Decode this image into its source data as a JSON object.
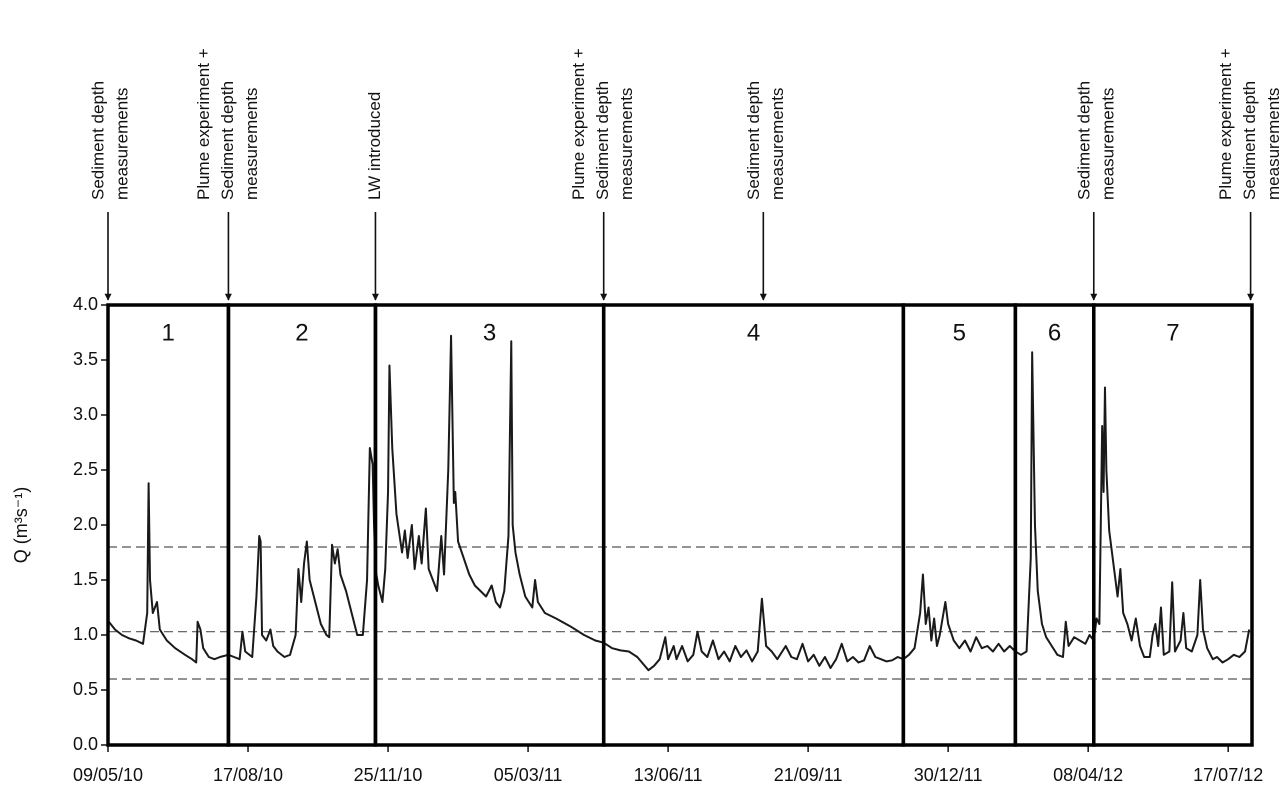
{
  "chart_data": {
    "type": "line",
    "y_label": "Q (m³s⁻¹)",
    "color": "#1a1a1a",
    "xlim": [
      "2010-05-09",
      "2012-08-03"
    ],
    "xticks": [
      {
        "value": "2010-05-09",
        "label": "09/05/10"
      },
      {
        "value": "2010-08-17",
        "label": "17/08/10"
      },
      {
        "value": "2010-11-25",
        "label": "25/11/10"
      },
      {
        "value": "2011-03-05",
        "label": "05/03/11"
      },
      {
        "value": "2011-06-13",
        "label": "13/06/11"
      },
      {
        "value": "2011-09-21",
        "label": "21/09/11"
      },
      {
        "value": "2011-12-30",
        "label": "30/12/11"
      },
      {
        "value": "2012-04-08",
        "label": "08/04/12"
      },
      {
        "value": "2012-07-17",
        "label": "17/07/12"
      }
    ],
    "ylim": [
      0,
      4
    ],
    "yticks": [
      {
        "value": 0,
        "label": "0.0"
      },
      0.5,
      {
        "value": 1,
        "label": "1.0"
      },
      1.5,
      {
        "value": 2,
        "label": "2.0"
      },
      2.5,
      {
        "value": 3,
        "label": "3.0"
      },
      3.5,
      {
        "value": 4,
        "label": "4.0"
      }
    ],
    "reference_lines": [
      1.8,
      1.03,
      0.6
    ],
    "periods": [
      {
        "label": "1",
        "start": "2010-05-09",
        "end": "2010-08-03"
      },
      {
        "label": "2",
        "start": "2010-08-03",
        "end": "2010-11-16"
      },
      {
        "label": "3",
        "start": "2010-11-16",
        "end": "2011-04-28"
      },
      {
        "label": "4",
        "start": "2011-04-28",
        "end": "2011-11-28"
      },
      {
        "label": "5",
        "start": "2011-11-28",
        "end": "2012-02-16"
      },
      {
        "label": "6",
        "start": "2012-02-16",
        "end": "2012-04-12"
      },
      {
        "label": "7",
        "start": "2012-04-12",
        "end": "2012-08-03"
      }
    ],
    "annotations": [
      {
        "x": "2010-05-09",
        "text": [
          "Sediment depth",
          "measurements"
        ]
      },
      {
        "x": "2010-08-03",
        "text": [
          "Plume experiment +",
          "Sediment depth",
          "measurements"
        ]
      },
      {
        "x": "2010-11-16",
        "text": [
          "LW introduced"
        ]
      },
      {
        "x": "2011-04-28",
        "text": [
          "Plume experiment +",
          "Sediment depth",
          "measurements"
        ]
      },
      {
        "x": "2011-08-20",
        "text": [
          "Sediment depth",
          "measurements"
        ]
      },
      {
        "x": "2012-04-12",
        "text": [
          "Sediment depth",
          "measurements"
        ]
      },
      {
        "x": "2012-08-02",
        "text": [
          "Plume experiment +",
          "Sediment depth",
          "measurements"
        ]
      }
    ],
    "x": [
      "2010-05-09",
      "2010-05-14",
      "2010-05-19",
      "2010-05-24",
      "2010-05-29",
      "2010-06-03",
      "2010-06-06",
      "2010-06-07",
      "2010-06-08",
      "2010-06-10",
      "2010-06-13",
      "2010-06-15",
      "2010-06-20",
      "2010-06-26",
      "2010-07-03",
      "2010-07-08",
      "2010-07-11",
      "2010-07-12",
      "2010-07-14",
      "2010-07-16",
      "2010-07-20",
      "2010-07-24",
      "2010-07-28",
      "2010-08-03",
      "2010-08-07",
      "2010-08-11",
      "2010-08-13",
      "2010-08-15",
      "2010-08-20",
      "2010-08-23",
      "2010-08-25",
      "2010-08-26",
      "2010-08-27",
      "2010-08-30",
      "2010-09-02",
      "2010-09-04",
      "2010-09-07",
      "2010-09-12",
      "2010-09-16",
      "2010-09-20",
      "2010-09-22",
      "2010-09-24",
      "2010-09-26",
      "2010-09-28",
      "2010-09-30",
      "2010-10-04",
      "2010-10-08",
      "2010-10-12",
      "2010-10-14",
      "2010-10-16",
      "2010-10-18",
      "2010-10-20",
      "2010-10-22",
      "2010-10-26",
      "2010-10-30",
      "2010-11-03",
      "2010-11-07",
      "2010-11-10",
      "2010-11-12",
      "2010-11-14",
      "2010-11-15",
      "2010-11-16",
      "2010-11-18",
      "2010-11-21",
      "2010-11-23",
      "2010-11-25",
      "2010-11-26",
      "2010-11-28",
      "2010-12-01",
      "2010-12-05",
      "2010-12-07",
      "2010-12-09",
      "2010-12-12",
      "2010-12-14",
      "2010-12-17",
      "2010-12-19",
      "2010-12-22",
      "2010-12-24",
      "2010-12-27",
      "2010-12-30",
      "2011-01-02",
      "2011-01-04",
      "2011-01-07",
      "2011-01-09",
      "2011-01-11",
      "2011-01-12",
      "2011-01-14",
      "2011-01-18",
      "2011-01-22",
      "2011-01-26",
      "2011-01-30",
      "2011-02-03",
      "2011-02-07",
      "2011-02-10",
      "2011-02-13",
      "2011-02-16",
      "2011-02-19",
      "2011-02-21",
      "2011-02-22",
      "2011-02-24",
      "2011-02-27",
      "2011-03-03",
      "2011-03-08",
      "2011-03-10",
      "2011-03-12",
      "2011-03-17",
      "2011-03-25",
      "2011-04-04",
      "2011-04-14",
      "2011-04-22",
      "2011-04-28",
      "2011-05-04",
      "2011-05-10",
      "2011-05-16",
      "2011-05-22",
      "2011-05-26",
      "2011-05-30",
      "2011-06-03",
      "2011-06-07",
      "2011-06-11",
      "2011-06-13",
      "2011-06-17",
      "2011-06-19",
      "2011-06-23",
      "2011-06-27",
      "2011-07-01",
      "2011-07-04",
      "2011-07-07",
      "2011-07-11",
      "2011-07-15",
      "2011-07-19",
      "2011-07-23",
      "2011-07-27",
      "2011-07-31",
      "2011-08-04",
      "2011-08-08",
      "2011-08-12",
      "2011-08-16",
      "2011-08-19",
      "2011-08-22",
      "2011-08-26",
      "2011-08-30",
      "2011-09-05",
      "2011-09-09",
      "2011-09-13",
      "2011-09-17",
      "2011-09-21",
      "2011-09-25",
      "2011-09-29",
      "2011-10-03",
      "2011-10-07",
      "2011-10-11",
      "2011-10-15",
      "2011-10-19",
      "2011-10-23",
      "2011-10-27",
      "2011-10-31",
      "2011-11-04",
      "2011-11-08",
      "2011-11-12",
      "2011-11-16",
      "2011-11-20",
      "2011-11-24",
      "2011-11-28",
      "2011-12-02",
      "2011-12-06",
      "2011-12-10",
      "2011-12-12",
      "2011-12-14",
      "2011-12-16",
      "2011-12-18",
      "2011-12-20",
      "2011-12-22",
      "2011-12-24",
      "2011-12-28",
      "2011-12-30",
      "2012-01-03",
      "2012-01-07",
      "2012-01-11",
      "2012-01-15",
      "2012-01-19",
      "2012-01-23",
      "2012-01-27",
      "2012-01-31",
      "2012-02-04",
      "2012-02-08",
      "2012-02-12",
      "2012-02-16",
      "2012-02-20",
      "2012-02-24",
      "2012-02-27",
      "2012-02-28",
      "2012-03-01",
      "2012-03-03",
      "2012-03-06",
      "2012-03-09",
      "2012-03-13",
      "2012-03-17",
      "2012-03-21",
      "2012-03-23",
      "2012-03-25",
      "2012-03-29",
      "2012-04-02",
      "2012-04-06",
      "2012-04-09",
      "2012-04-12",
      "2012-04-14",
      "2012-04-16",
      "2012-04-18",
      "2012-04-19",
      "2012-04-20",
      "2012-04-21",
      "2012-04-23",
      "2012-04-26",
      "2012-04-29",
      "2012-05-01",
      "2012-05-03",
      "2012-05-06",
      "2012-05-09",
      "2012-05-12",
      "2012-05-15",
      "2012-05-18",
      "2012-05-22",
      "2012-05-24",
      "2012-05-26",
      "2012-05-28",
      "2012-05-30",
      "2012-06-01",
      "2012-06-05",
      "2012-06-07",
      "2012-06-09",
      "2012-06-13",
      "2012-06-15",
      "2012-06-17",
      "2012-06-21",
      "2012-06-25",
      "2012-06-27",
      "2012-06-29",
      "2012-07-02",
      "2012-07-06",
      "2012-07-09",
      "2012-07-13",
      "2012-07-17",
      "2012-07-21",
      "2012-07-25",
      "2012-07-29",
      "2012-08-01"
    ],
    "values": [
      1.13,
      1.05,
      1.0,
      0.97,
      0.95,
      0.92,
      1.2,
      2.38,
      1.5,
      1.2,
      1.3,
      1.05,
      0.95,
      0.88,
      0.82,
      0.78,
      0.75,
      1.12,
      1.05,
      0.88,
      0.8,
      0.78,
      0.8,
      0.82,
      0.8,
      0.78,
      1.03,
      0.85,
      0.8,
      1.35,
      1.9,
      1.85,
      1.0,
      0.95,
      1.05,
      0.9,
      0.85,
      0.8,
      0.82,
      1.0,
      1.6,
      1.3,
      1.65,
      1.85,
      1.5,
      1.3,
      1.1,
      1.0,
      0.98,
      1.82,
      1.65,
      1.78,
      1.55,
      1.4,
      1.2,
      1.0,
      1.0,
      1.5,
      2.7,
      2.55,
      2.0,
      1.6,
      1.45,
      1.3,
      1.6,
      2.3,
      3.45,
      2.7,
      2.1,
      1.75,
      1.95,
      1.7,
      2.0,
      1.6,
      1.9,
      1.65,
      2.15,
      1.6,
      1.5,
      1.4,
      1.9,
      1.55,
      2.5,
      3.72,
      2.2,
      2.3,
      1.85,
      1.7,
      1.55,
      1.45,
      1.4,
      1.35,
      1.45,
      1.3,
      1.25,
      1.4,
      1.9,
      3.67,
      2.0,
      1.75,
      1.55,
      1.35,
      1.25,
      1.5,
      1.3,
      1.2,
      1.15,
      1.08,
      1.0,
      0.95,
      0.93,
      0.88,
      0.86,
      0.85,
      0.8,
      0.74,
      0.68,
      0.72,
      0.78,
      0.98,
      0.78,
      0.9,
      0.78,
      0.9,
      0.76,
      0.82,
      1.03,
      0.85,
      0.8,
      0.95,
      0.78,
      0.85,
      0.76,
      0.9,
      0.8,
      0.86,
      0.76,
      0.85,
      1.33,
      0.9,
      0.85,
      0.78,
      0.9,
      0.8,
      0.78,
      0.92,
      0.76,
      0.82,
      0.72,
      0.8,
      0.7,
      0.78,
      0.92,
      0.76,
      0.8,
      0.75,
      0.77,
      0.9,
      0.8,
      0.78,
      0.76,
      0.77,
      0.8,
      0.78,
      0.82,
      0.88,
      1.2,
      1.55,
      1.1,
      1.25,
      0.95,
      1.15,
      0.9,
      1.0,
      1.3,
      1.1,
      0.95,
      0.88,
      0.95,
      0.85,
      0.98,
      0.88,
      0.9,
      0.85,
      0.92,
      0.85,
      0.9,
      0.85,
      0.82,
      0.85,
      1.7,
      3.57,
      2.0,
      1.4,
      1.1,
      0.98,
      0.9,
      0.82,
      0.8,
      1.12,
      0.9,
      0.98,
      0.95,
      0.92,
      1.0,
      0.95,
      1.15,
      1.1,
      2.9,
      2.3,
      3.25,
      2.5,
      1.95,
      1.65,
      1.35,
      1.6,
      1.2,
      1.1,
      0.95,
      1.15,
      0.9,
      0.8,
      0.8,
      1.0,
      1.1,
      0.9,
      1.25,
      0.82,
      0.85,
      1.48,
      0.85,
      0.95,
      1.2,
      0.88,
      0.85,
      1.0,
      1.5,
      1.05,
      0.88,
      0.78,
      0.8,
      0.75,
      0.78,
      0.82,
      0.8,
      0.85,
      1.05
    ]
  }
}
